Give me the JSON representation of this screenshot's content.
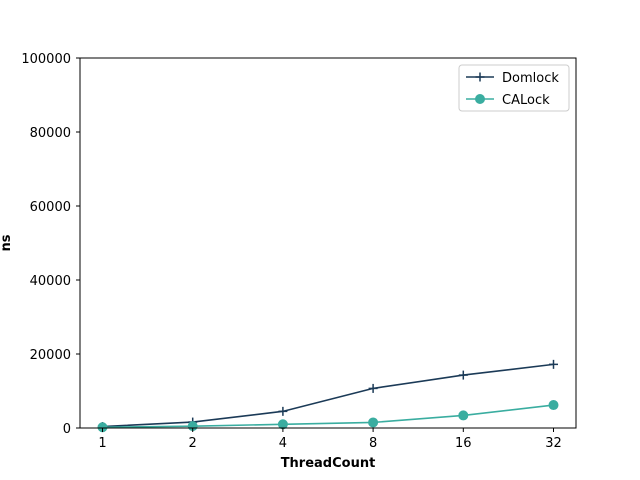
{
  "chart_data": {
    "type": "line",
    "title": "",
    "xlabel": "ThreadCount",
    "ylabel": "ns",
    "x": [
      "1",
      "2",
      "4",
      "8",
      "16",
      "32"
    ],
    "ylim": [
      0,
      100000
    ],
    "yticks": [
      "0",
      "20000",
      "40000",
      "60000",
      "80000",
      "100000"
    ],
    "grid": false,
    "legend_position": "top-right",
    "series": [
      {
        "name": "Domlock",
        "values": [
          400,
          1600,
          4500,
          10700,
          14300,
          17200
        ],
        "color": "#1b3a57",
        "marker": "plus"
      },
      {
        "name": "CALock",
        "values": [
          200,
          500,
          1000,
          1500,
          3400,
          6200
        ],
        "color": "#3aada0",
        "marker": "circle"
      }
    ]
  }
}
